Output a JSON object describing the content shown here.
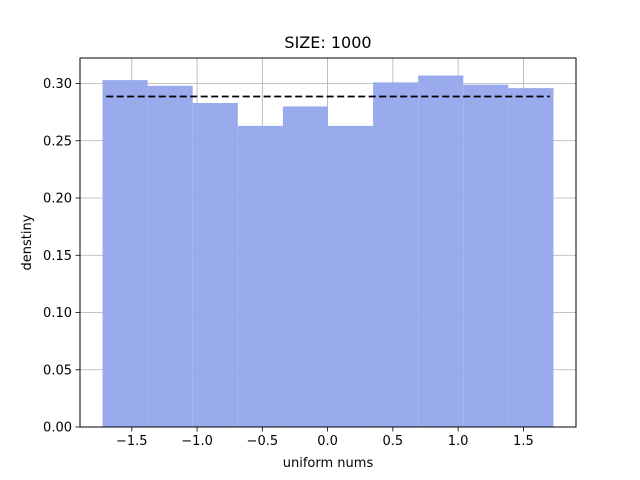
{
  "chart_data": {
    "type": "bar",
    "title": "SIZE: 1000",
    "xlabel": "uniform nums",
    "ylabel": "denstiny",
    "bin_edges": [
      -1.7245,
      -1.379,
      -1.0335,
      -0.688,
      -0.3425,
      0.003,
      0.3485,
      0.694,
      1.0395,
      1.385,
      1.7305
    ],
    "values": [
      0.303,
      0.298,
      0.283,
      0.263,
      0.28,
      0.263,
      0.301,
      0.307,
      0.299,
      0.296
    ],
    "reference_line": {
      "y": 0.2887,
      "x_start": -1.6964,
      "x_end": 1.7024,
      "style": "dashed",
      "color": "#000000"
    },
    "xlim": [
      -1.897,
      1.903
    ],
    "ylim": [
      0,
      0.3223
    ],
    "xticks": [
      -1.5,
      -1.0,
      -0.5,
      0.0,
      0.5,
      1.0,
      1.5
    ],
    "xtick_labels": [
      "−1.5",
      "−1.0",
      "−0.5",
      "0.0",
      "0.5",
      "1.0",
      "1.5"
    ],
    "yticks": [
      0.0,
      0.05,
      0.1,
      0.15,
      0.2,
      0.25,
      0.3
    ],
    "ytick_labels": [
      "0.00",
      "0.05",
      "0.10",
      "0.15",
      "0.20",
      "0.25",
      "0.30"
    ],
    "grid": true,
    "bar_color": "#99abec"
  }
}
